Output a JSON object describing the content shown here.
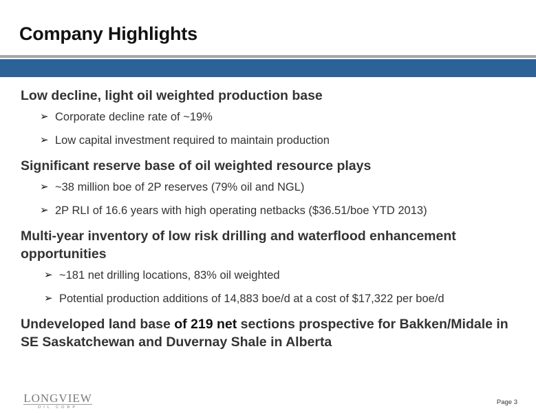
{
  "title": "Company Highlights",
  "sections": [
    {
      "heading": "Low decline, light oil weighted production base",
      "bullets": [
        "Corporate decline rate of ~19%",
        "Low capital investment required to maintain production"
      ]
    },
    {
      "heading": "Significant reserve base of oil weighted resource plays",
      "bullets": [
        "~38 million boe of 2P reserves (79% oil and NGL)",
        "2P RLI of 16.6 years with high operating netbacks ($36.51/boe YTD 2013)"
      ]
    },
    {
      "heading": "Multi-year inventory of low risk drilling and waterflood enhancement opportunities",
      "bullets": [
        "~181 net drilling locations, 83% oil weighted",
        "Potential production additions of 14,883 boe/d at a cost of $17,322 per boe/d"
      ]
    },
    {
      "heading_part1": "Undeveloped land base ",
      "heading_part2": "of 219 net",
      "heading_part3": " sections prospective for Bakken/Midale in SE Saskatchewan and Duvernay Shale in Alberta"
    }
  ],
  "bullet_marker": "➢",
  "logo": {
    "name": "LONGVIEW",
    "sub": "OIL CORP"
  },
  "page_label": "Page 3"
}
